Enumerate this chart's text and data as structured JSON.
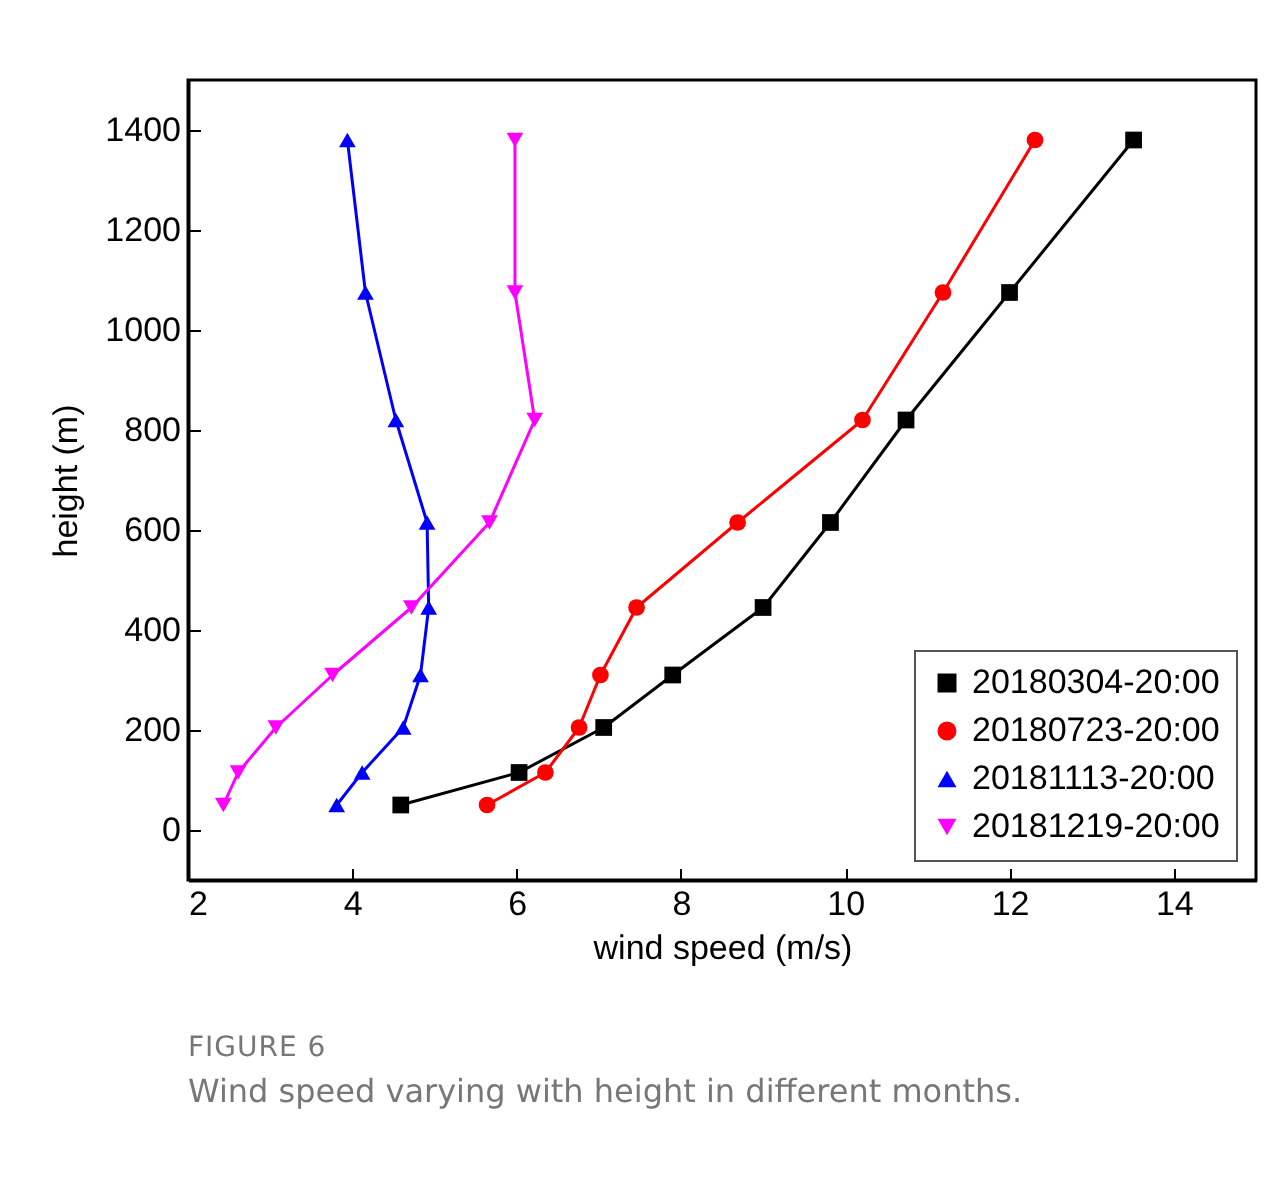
{
  "chart_data": {
    "type": "line",
    "xlabel": "wind speed (m/s)",
    "ylabel": "height (m)",
    "xlim": [
      2,
      15
    ],
    "xticks": [
      2,
      4,
      6,
      8,
      10,
      12,
      14
    ],
    "ylim": [
      -100,
      1500
    ],
    "yticks": [
      0,
      200,
      400,
      600,
      800,
      1000,
      1200,
      1400
    ],
    "grid": false,
    "legend": "bottom right",
    "line_style": "solid",
    "annotations": [
      "FIGURE 6",
      "Wind speed varying with height in different months."
    ],
    "series": [
      {
        "name": "20180304-20:00",
        "color": "#000000",
        "marker": "square",
        "x": [
          4.59,
          6.03,
          7.06,
          7.9,
          9.0,
          9.82,
          10.74,
          12.0,
          13.51
        ],
        "values": [
          50,
          115,
          205,
          310,
          445,
          615,
          820,
          1075,
          1380
        ]
      },
      {
        "name": "20180723-20:00",
        "color": "#ff0000",
        "marker": "circle",
        "x": [
          5.64,
          6.35,
          6.76,
          7.02,
          7.46,
          8.69,
          10.21,
          11.19,
          12.31
        ],
        "values": [
          50,
          115,
          205,
          310,
          445,
          615,
          820,
          1075,
          1380
        ]
      },
      {
        "name": "20181113-20:00",
        "color": "#0000ff",
        "marker": "triangle",
        "x": [
          3.81,
          4.12,
          4.62,
          4.83,
          4.93,
          4.91,
          4.53,
          4.16,
          3.94
        ],
        "values": [
          50,
          115,
          205,
          310,
          445,
          615,
          820,
          1075,
          1380
        ]
      },
      {
        "name": "20181219-20:00",
        "color": "#ff00ff",
        "marker": "triangle-down",
        "x": [
          2.43,
          2.61,
          3.07,
          3.76,
          4.72,
          5.67,
          6.22,
          5.98,
          5.98
        ],
        "values": [
          50,
          115,
          205,
          310,
          445,
          615,
          820,
          1075,
          1380
        ]
      }
    ]
  }
}
